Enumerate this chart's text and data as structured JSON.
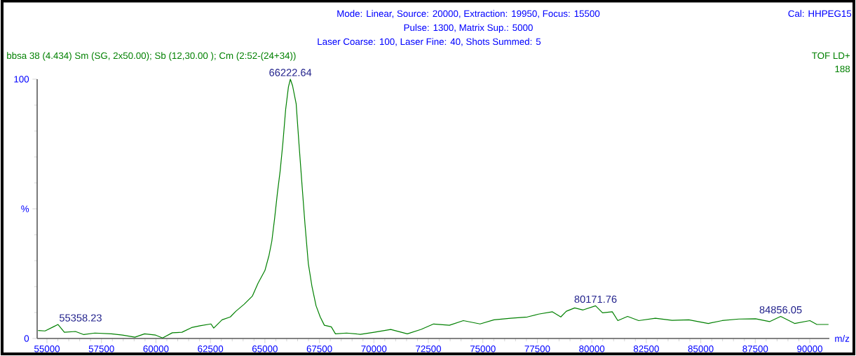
{
  "chart_data": {
    "type": "line",
    "title": "Mode: Linear, Source: 20000, Extraction: 19950, Focus: 15500",
    "subtitle": "Pulse: 1300, Matrix Sup.: 5000",
    "annotations": [
      "Laser Coarse: 100, Laser Fine: 40, Shots Summed: 5",
      "Cal: HHPEG15",
      "bbsa  38 (4.434) Sm (SG, 2x50.00); Sb (12,30.00 ); Cm (2:52-(24+34))",
      "TOF LD+",
      "188",
      {
        "text": "55358.23",
        "x": 55508,
        "y": 5.4
      },
      {
        "text": "66222.64",
        "x": 66168,
        "y": 100
      },
      {
        "text": "80171.76",
        "x": 80172,
        "y": 12.6
      },
      {
        "text": "84856.05",
        "x": 88666,
        "y": 8.5
      }
    ],
    "xlabel": "m/z",
    "color": "#008000",
    "line_style": "solid",
    "marker": "none",
    "x": [
      54594,
      54911,
      55292,
      55508,
      55800,
      56307,
      56688,
      57195,
      57957,
      58464,
      59036,
      59480,
      59987,
      60305,
      60749,
      61193,
      61637,
      62018,
      62525,
      62652,
      63033,
      63414,
      63668,
      64048,
      64429,
      64683,
      65000,
      65190,
      65317,
      65444,
      65571,
      65698,
      65825,
      65952,
      66079,
      66168,
      66269,
      66434,
      66561,
      66713,
      66840,
      66992,
      67157,
      67348,
      67538,
      67728,
      68046,
      68236,
      68744,
      69378,
      70013,
      70774,
      71536,
      72170,
      72741,
      73467,
      74106,
      74872,
      75511,
      76277,
      77043,
      77554,
      78193,
      78576,
      78831,
      79215,
      79598,
      80172,
      80492,
      80939,
      81194,
      81641,
      82152,
      82918,
      83685,
      84451,
      85345,
      85983,
      86750,
      87516,
      88155,
      88666,
      89304,
      90006,
      90326,
      90862
    ],
    "values": [
      3.1,
      2.9,
      4.5,
      5.4,
      2.4,
      2.7,
      1.5,
      2.1,
      1.8,
      1.3,
      0.5,
      1.8,
      1.3,
      0.2,
      2.2,
      2.4,
      4.2,
      4.9,
      5.6,
      4.0,
      7.2,
      8.3,
      10.5,
      13.2,
      16.4,
      21.3,
      26.2,
      32.1,
      37.5,
      46.2,
      55.9,
      64.5,
      75.4,
      88.3,
      97.0,
      100,
      97.5,
      90.5,
      75.4,
      58.1,
      44.0,
      28.9,
      20.2,
      12.6,
      8.3,
      5.1,
      4.5,
      1.8,
      2.1,
      1.6,
      2.4,
      3.5,
      1.8,
      3.5,
      5.6,
      5.1,
      6.9,
      5.6,
      7.2,
      7.8,
      8.3,
      9.4,
      10.3,
      8.3,
      10.5,
      11.8,
      11.0,
      12.6,
      9.9,
      10.3,
      6.9,
      8.5,
      6.9,
      7.8,
      7.0,
      7.2,
      5.8,
      6.9,
      7.5,
      7.6,
      6.5,
      8.5,
      5.8,
      6.9,
      5.4,
      5.4
    ],
    "xlim": [
      54550,
      90900
    ],
    "ylim": [
      0,
      100
    ],
    "xticks": [
      55000,
      57500,
      60000,
      62500,
      65000,
      67500,
      70000,
      72500,
      75000,
      77500,
      80000,
      82500,
      85000,
      87500,
      90000
    ],
    "yticks": [
      0,
      {
        "value": 50,
        "label": "%"
      },
      100
    ]
  }
}
